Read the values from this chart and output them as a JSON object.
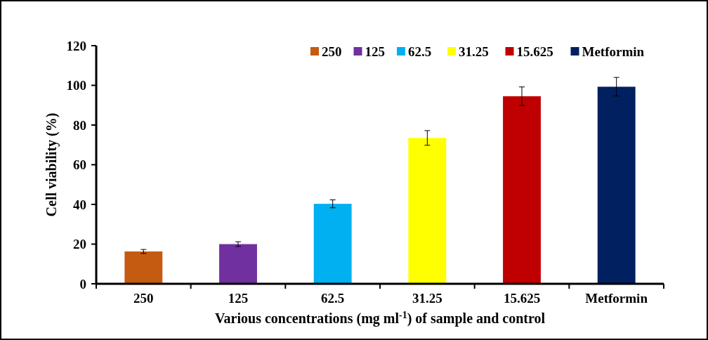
{
  "chart_data": {
    "type": "bar",
    "xlabel": "Various concentrations (mg ml$^{-1}$) of sample and control",
    "ylabel": "Cell viability (%)",
    "categories": [
      "250",
      "125",
      "62.5",
      "31.25",
      "15.625",
      "Metformin"
    ],
    "series": [
      {
        "name": "250",
        "color": "#c55a11",
        "values": [
          16.3,
          null,
          null,
          null,
          null,
          null
        ],
        "errors": [
          1,
          null,
          null,
          null,
          null,
          null
        ]
      },
      {
        "name": "125",
        "color": "#7030a0",
        "values": [
          null,
          20,
          null,
          null,
          null,
          null
        ],
        "errors": [
          null,
          1.2,
          null,
          null,
          null,
          null
        ]
      },
      {
        "name": "62.5",
        "color": "#00b0f0",
        "values": [
          null,
          null,
          40.3,
          null,
          null,
          null
        ],
        "errors": [
          null,
          null,
          2,
          null,
          null,
          null
        ]
      },
      {
        "name": "31.25",
        "color": "#ffff00",
        "values": [
          null,
          null,
          null,
          73.5,
          null,
          null
        ],
        "errors": [
          null,
          null,
          null,
          3.7,
          null,
          null
        ]
      },
      {
        "name": "15.625",
        "color": "#c00000",
        "values": [
          null,
          null,
          null,
          null,
          94.5,
          null
        ],
        "errors": [
          null,
          null,
          null,
          null,
          4.7,
          null
        ]
      },
      {
        "name": "Metformin",
        "color": "#002060",
        "values": [
          null,
          null,
          null,
          null,
          null,
          99.3
        ],
        "errors": [
          null,
          null,
          null,
          null,
          null,
          4.7
        ]
      }
    ],
    "ylim": [
      0,
      120
    ],
    "yticks": [
      0,
      20,
      40,
      60,
      80,
      100,
      120
    ],
    "grid": false,
    "legend": "top right"
  }
}
